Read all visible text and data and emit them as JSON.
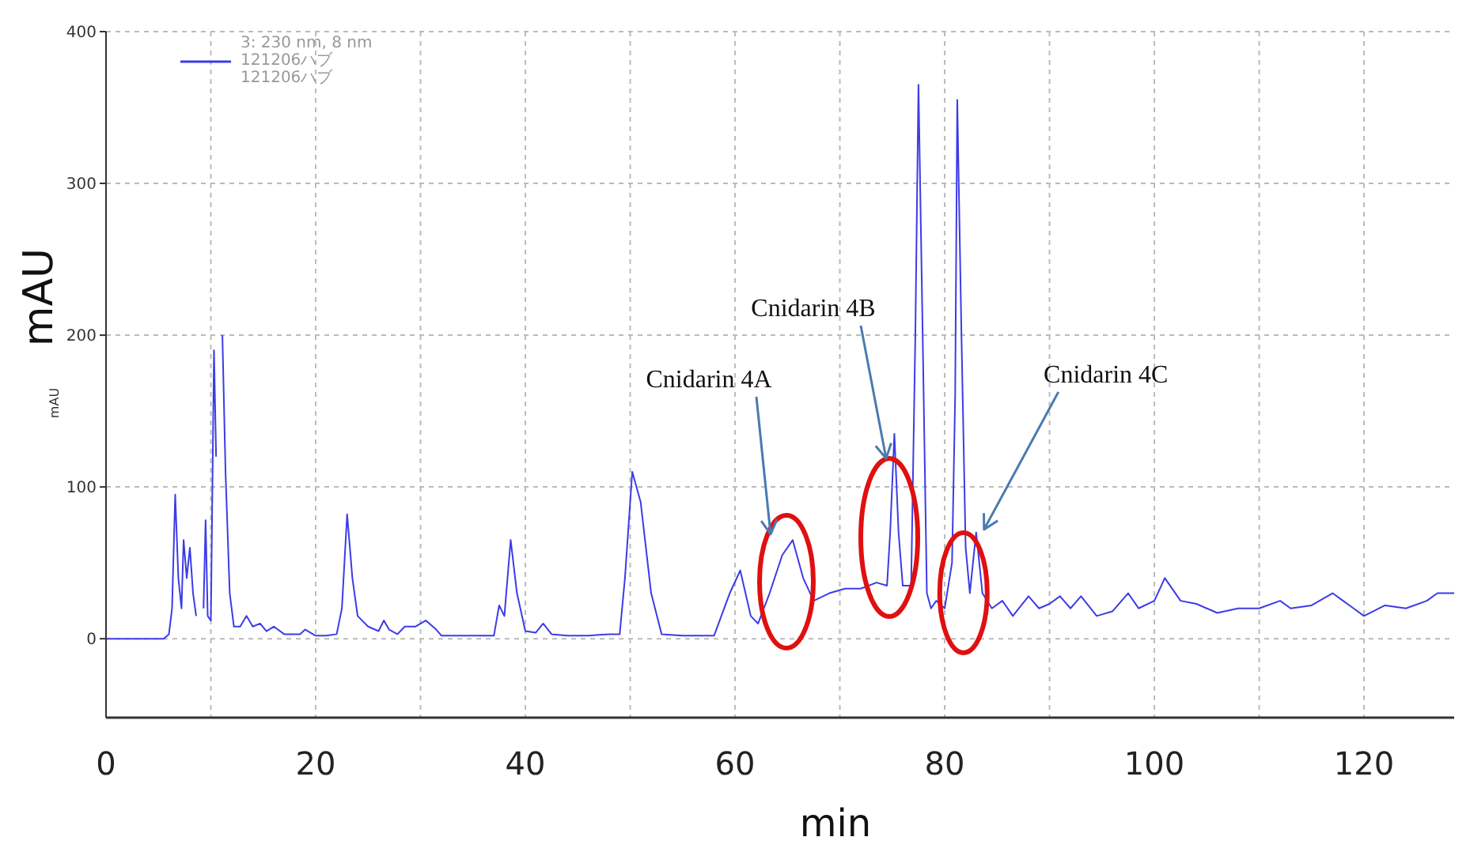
{
  "chart_data": {
    "type": "line",
    "xlabel": "min",
    "ylabel": "mAU",
    "legend_title": "3: 230 nm, 8 nm",
    "legend": "top left",
    "grid": true,
    "marker": "none",
    "line_style": "solid",
    "xlim": [
      0,
      128.6
    ],
    "ylim": [
      -52,
      400
    ],
    "xticks": [
      0,
      {
        "value": 10,
        "label": null
      },
      20,
      {
        "value": 30,
        "label": null
      },
      40,
      {
        "value": 50,
        "label": null
      },
      60,
      {
        "value": 70,
        "label": null
      },
      80,
      {
        "value": 90,
        "label": null
      },
      100,
      {
        "value": 110,
        "label": null
      },
      120
    ],
    "yticks": [
      0,
      100,
      200,
      300,
      400
    ],
    "annotations": [
      "mAU",
      "121206ハブ",
      "Cnidarin 4A",
      "Cnidarin 4B",
      {
        "text": "Cnidarin 4C",
        "x": 83,
        "y": 70
      }
    ],
    "series": [
      {
        "name": "121206ハブ",
        "color": "#3c3ce6",
        "x": [
          0,
          5.5,
          6,
          6.3,
          6.6,
          6.9,
          7.2,
          7.4,
          7.7,
          8,
          8.3,
          8.6,
          8.8,
          9.1,
          9.3,
          9.5,
          9.7,
          10,
          10.3,
          10.5,
          10.7,
          10.9,
          11.1,
          11.4,
          11.8,
          12.2,
          12.8,
          13.4,
          14,
          14.7,
          15.3,
          16,
          17,
          18.5,
          19,
          20,
          21,
          22,
          22.5,
          23,
          23.5,
          24,
          25,
          26,
          26.5,
          27,
          27.8,
          28.5,
          29.5,
          30.5,
          31.5,
          32,
          34,
          36,
          37,
          37.5,
          38,
          38.6,
          39.2,
          40,
          41,
          41.7,
          42.5,
          44,
          46,
          48,
          49,
          49.5,
          50.2,
          51,
          52,
          53,
          55,
          58,
          59.5,
          60.5,
          61.5,
          62.2,
          63.3,
          64.5,
          65.5,
          66.5,
          67.5,
          69,
          70.5,
          72,
          73.5,
          74.5,
          74.8,
          75.2,
          75.6,
          76,
          76.8,
          77.2,
          77.5,
          77.9,
          78.3,
          78.7,
          79.2,
          80,
          80.7,
          81,
          81.2,
          81.6,
          82,
          82.4,
          83,
          83.6,
          84.5,
          85.5,
          86.5,
          88,
          89,
          90,
          91,
          92,
          93,
          94.5,
          96,
          97.5,
          98.5,
          100,
          101,
          102.5,
          104,
          106,
          108,
          110,
          112,
          113,
          115,
          117,
          118,
          119,
          120,
          122,
          124,
          126,
          127,
          128.6
        ],
        "values": [
          0,
          0,
          3,
          20,
          95,
          40,
          20,
          65,
          40,
          60,
          30,
          15,
          null,
          null,
          20,
          78,
          15,
          12,
          190,
          120,
          null,
          null,
          200,
          110,
          30,
          8,
          8,
          15,
          8,
          10,
          5,
          8,
          3,
          3,
          6,
          2,
          2,
          3,
          20,
          82,
          40,
          15,
          8,
          5,
          12,
          6,
          3,
          8,
          8,
          12,
          6,
          2,
          2,
          2,
          2,
          22,
          15,
          65,
          30,
          5,
          4,
          10,
          3,
          2,
          2,
          3,
          3,
          40,
          110,
          90,
          30,
          3,
          2,
          2,
          30,
          45,
          15,
          10,
          30,
          55,
          65,
          40,
          25,
          30,
          33,
          33,
          37,
          35,
          70,
          135,
          70,
          35,
          35,
          200,
          365,
          200,
          30,
          20,
          25,
          20,
          50,
          160,
          355,
          200,
          60,
          30,
          70,
          30,
          20,
          25,
          15,
          28,
          20,
          23,
          28,
          20,
          28,
          15,
          18,
          30,
          20,
          25,
          40,
          25,
          23,
          17,
          20,
          20,
          25,
          20,
          22,
          30,
          25,
          20,
          15,
          22,
          20,
          25,
          30,
          30
        ]
      }
    ]
  }
}
